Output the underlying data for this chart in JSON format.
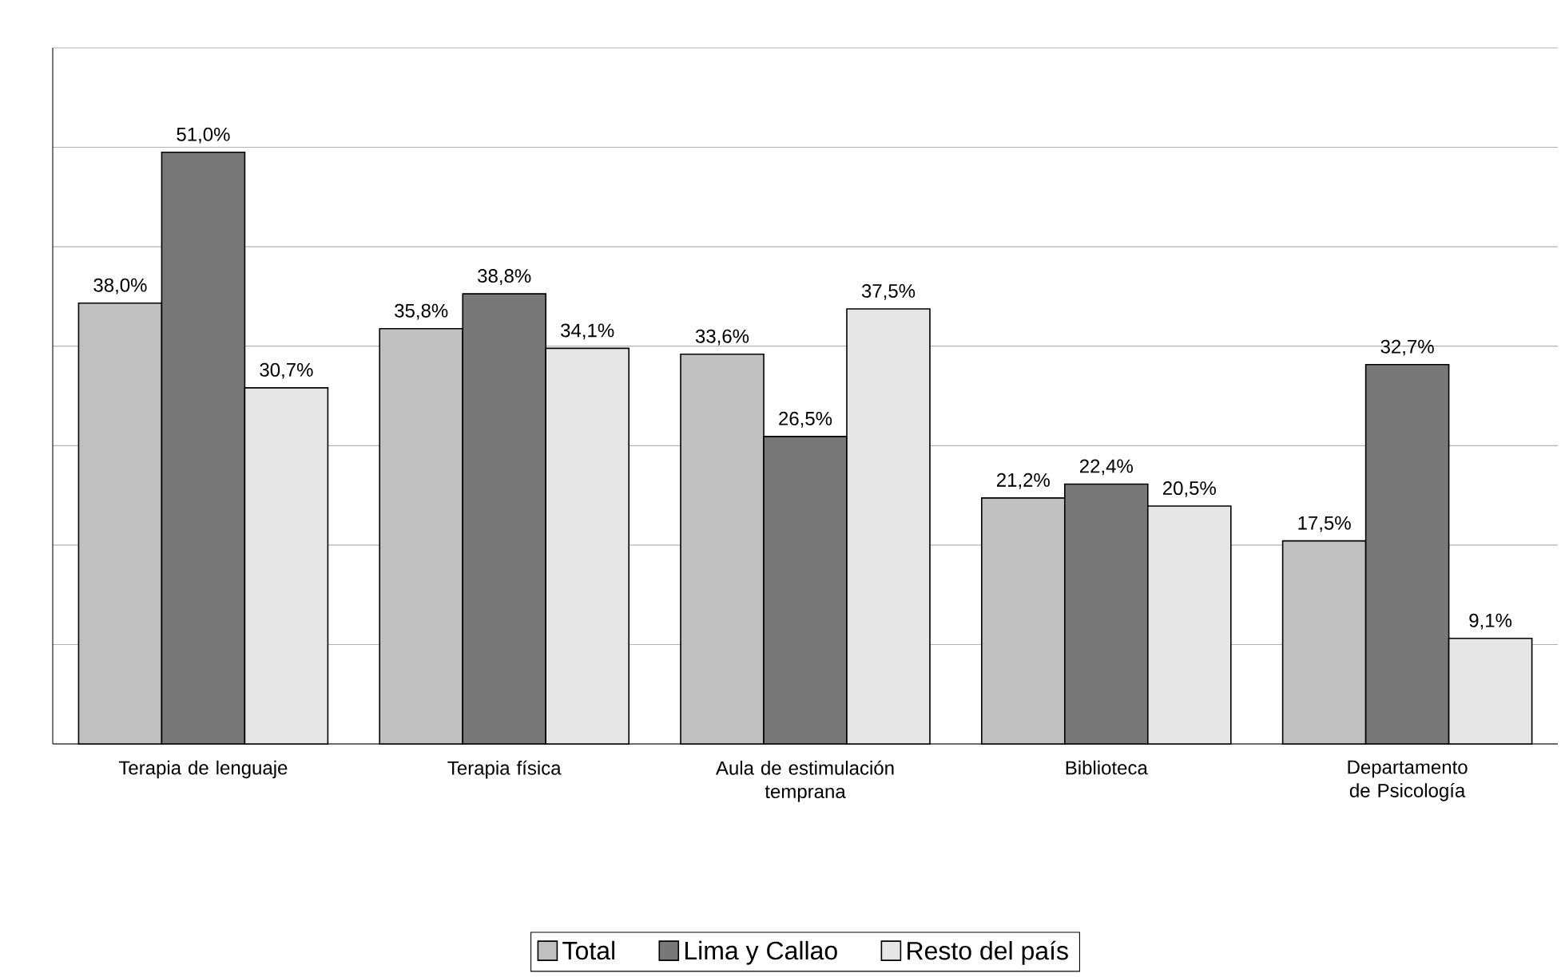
{
  "chart_data": {
    "type": "bar",
    "categories": [
      "Terapia de lenguaje",
      "Terapia física",
      "Aula de estimulación temprana",
      "Biblioteca",
      "Departamento de Psicología"
    ],
    "series": [
      {
        "name": "Total",
        "color": "#c0c0c0",
        "values": [
          38.0,
          35.8,
          33.6,
          21.2,
          17.5
        ],
        "value_labels": [
          "38,0%",
          "35,8%",
          "33,6%",
          "21,2%",
          "17,5%"
        ]
      },
      {
        "name": "Lima y Callao",
        "color": "#787878",
        "values": [
          51.0,
          38.8,
          26.5,
          22.4,
          32.7
        ],
        "value_labels": [
          "51,0%",
          "38,8%",
          "26,5%",
          "22,4%",
          "32,7%"
        ]
      },
      {
        "name": "Resto del país",
        "color": "#e6e6e6",
        "values": [
          30.7,
          34.1,
          37.5,
          20.5,
          9.1
        ],
        "value_labels": [
          "30,7%",
          "34,1%",
          "37,5%",
          "20,5%",
          "9,1%"
        ]
      }
    ],
    "ylim": [
      0,
      60
    ],
    "yticks": [
      {
        "value": 0,
        "label": null
      },
      {
        "value": 8.57,
        "label": null
      },
      {
        "value": 17.14,
        "label": null
      },
      {
        "value": 25.71,
        "label": null
      },
      {
        "value": 34.29,
        "label": null
      },
      {
        "value": 42.86,
        "label": null
      },
      {
        "value": 51.43,
        "label": null
      },
      {
        "value": 60,
        "label": null
      }
    ],
    "grid": "y",
    "legend": "bottom",
    "tick_labels": "x"
  }
}
